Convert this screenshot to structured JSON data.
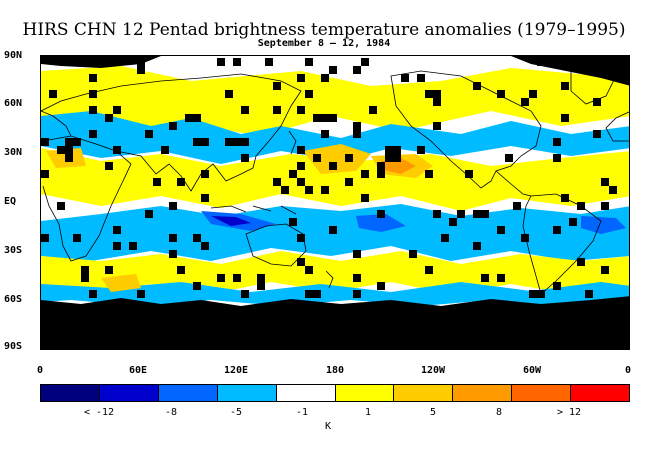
{
  "title": "HIRS CHN 12 Pentad brightness temperature anomalies (1979–1995)",
  "subtitle": "September 8 – 12, 1984",
  "y_axis_labels": [
    "90N",
    "60N",
    "30N",
    "EQ",
    "30S",
    "60S",
    "90S"
  ],
  "x_axis_labels": [
    "0",
    "60E",
    "120E",
    "180",
    "120W",
    "60W",
    "0"
  ],
  "legend": {
    "colors": [
      "#00007f",
      "#0000cc",
      "#0066ff",
      "#00bbff",
      "#ffffff",
      "#ffff00",
      "#ffcc00",
      "#ff9900",
      "#ff6600",
      "#ff0000"
    ],
    "labels": [
      "< -12",
      "-8",
      "-5",
      "-1",
      "1",
      "5",
      "8",
      "> 12"
    ],
    "unit": "K"
  }
}
